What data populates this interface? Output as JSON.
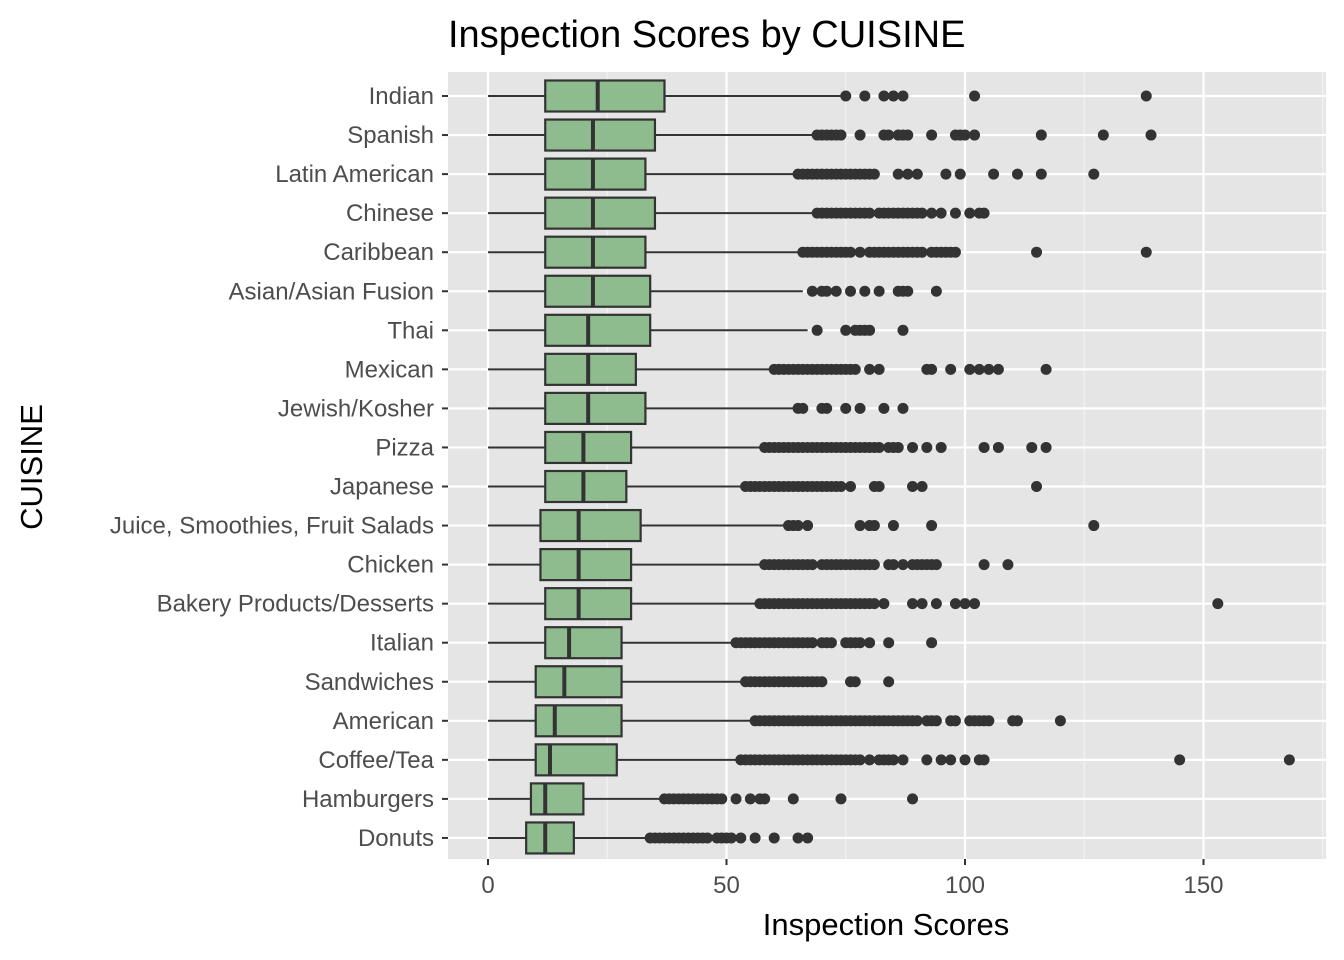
{
  "chart_data": {
    "type": "boxplot",
    "orientation": "horizontal",
    "title": "Inspection Scores by CUISINE",
    "xlabel": "Inspection Scores",
    "ylabel": "CUISINE",
    "xlim": [
      -8,
      176
    ],
    "x_ticks": [
      0,
      50,
      100,
      150
    ],
    "grid": true,
    "legend": "none",
    "box_fill": "#8FBC8F",
    "box_stroke": "#333333",
    "panel_background": "#E5E5E5",
    "categories": [
      "Indian",
      "Spanish",
      "Latin American",
      "Chinese",
      "Caribbean",
      "Asian/Asian Fusion",
      "Thai",
      "Mexican",
      "Jewish/Kosher",
      "Pizza",
      "Japanese",
      "Juice, Smoothies, Fruit Salads",
      "Chicken",
      "Bakery Products/Desserts",
      "Italian",
      "Sandwiches",
      "American",
      "Coffee/Tea",
      "Hamburgers",
      "Donuts"
    ],
    "boxes": [
      {
        "name": "Indian",
        "min": 0,
        "q1": 12,
        "median": 23,
        "q3": 37,
        "max": 74,
        "outliers": [
          75,
          79,
          83,
          85,
          87,
          102,
          138
        ]
      },
      {
        "name": "Spanish",
        "min": 0,
        "q1": 12,
        "median": 22,
        "q3": 35,
        "max": 68,
        "outliers": [
          69,
          70,
          71,
          72,
          73,
          74,
          78,
          83,
          84,
          86,
          87,
          88,
          93,
          98,
          99,
          100,
          102,
          116,
          129,
          139
        ]
      },
      {
        "name": "Latin American",
        "min": 0,
        "q1": 12,
        "median": 22,
        "q3": 33,
        "max": 64,
        "outliers": [
          65,
          66,
          67,
          68,
          69,
          70,
          71,
          72,
          73,
          74,
          75,
          76,
          77,
          78,
          79,
          80,
          81,
          86,
          88,
          90,
          96,
          99,
          106,
          111,
          116,
          127
        ]
      },
      {
        "name": "Chinese",
        "min": 0,
        "q1": 12,
        "median": 22,
        "q3": 35,
        "max": 68,
        "outliers": [
          69,
          70,
          71,
          72,
          73,
          74,
          75,
          76,
          77,
          78,
          79,
          80,
          82,
          83,
          84,
          85,
          86,
          87,
          88,
          89,
          90,
          91,
          93,
          95,
          98,
          101,
          103,
          104
        ]
      },
      {
        "name": "Caribbean",
        "min": 0,
        "q1": 12,
        "median": 22,
        "q3": 33,
        "max": 65,
        "outliers": [
          66,
          67,
          68,
          69,
          70,
          71,
          72,
          73,
          74,
          75,
          76,
          78,
          80,
          81,
          82,
          83,
          84,
          85,
          86,
          87,
          88,
          89,
          90,
          91,
          93,
          94,
          95,
          96,
          97,
          98,
          115,
          138
        ]
      },
      {
        "name": "Asian/Asian Fusion",
        "min": 0,
        "q1": 12,
        "median": 22,
        "q3": 34,
        "max": 66,
        "outliers": [
          68,
          70,
          71,
          73,
          76,
          79,
          82,
          86,
          87,
          88,
          94
        ]
      },
      {
        "name": "Thai",
        "min": 0,
        "q1": 12,
        "median": 21,
        "q3": 34,
        "max": 67,
        "outliers": [
          69,
          75,
          77,
          78,
          79,
          80,
          87
        ]
      },
      {
        "name": "Mexican",
        "min": 0,
        "q1": 12,
        "median": 21,
        "q3": 31,
        "max": 59,
        "outliers": [
          60,
          61,
          62,
          63,
          64,
          65,
          66,
          67,
          68,
          69,
          70,
          71,
          72,
          73,
          74,
          75,
          76,
          77,
          80,
          82,
          92,
          93,
          97,
          101,
          103,
          105,
          107,
          117
        ]
      },
      {
        "name": "Jewish/Kosher",
        "min": 0,
        "q1": 12,
        "median": 21,
        "q3": 33,
        "max": 64,
        "outliers": [
          65,
          66,
          70,
          71,
          75,
          78,
          83,
          87
        ]
      },
      {
        "name": "Pizza",
        "min": 0,
        "q1": 12,
        "median": 20,
        "q3": 30,
        "max": 57,
        "outliers": [
          58,
          59,
          60,
          61,
          62,
          63,
          64,
          65,
          66,
          67,
          68,
          69,
          70,
          71,
          72,
          73,
          74,
          75,
          76,
          77,
          78,
          79,
          80,
          81,
          82,
          84,
          85,
          86,
          89,
          92,
          95,
          104,
          107,
          114,
          117
        ]
      },
      {
        "name": "Japanese",
        "min": 0,
        "q1": 12,
        "median": 20,
        "q3": 29,
        "max": 53,
        "outliers": [
          54,
          55,
          56,
          57,
          58,
          59,
          60,
          61,
          62,
          63,
          64,
          65,
          66,
          67,
          68,
          69,
          70,
          71,
          72,
          73,
          74,
          76,
          81,
          82,
          89,
          91,
          115
        ]
      },
      {
        "name": "Juice, Smoothies, Fruit Salads",
        "min": 0,
        "q1": 11,
        "median": 19,
        "q3": 32,
        "max": 62,
        "outliers": [
          63,
          64,
          65,
          67,
          78,
          80,
          81,
          85,
          93,
          127
        ]
      },
      {
        "name": "Chicken",
        "min": 0,
        "q1": 11,
        "median": 19,
        "q3": 30,
        "max": 57,
        "outliers": [
          58,
          59,
          60,
          61,
          62,
          63,
          64,
          65,
          66,
          67,
          68,
          70,
          71,
          72,
          73,
          74,
          75,
          76,
          77,
          78,
          79,
          80,
          81,
          84,
          85,
          87,
          89,
          90,
          91,
          92,
          93,
          94,
          104,
          109
        ]
      },
      {
        "name": "Bakery Products/Desserts",
        "min": 0,
        "q1": 12,
        "median": 19,
        "q3": 30,
        "max": 56,
        "outliers": [
          57,
          58,
          59,
          60,
          61,
          62,
          63,
          64,
          65,
          66,
          67,
          68,
          69,
          70,
          71,
          72,
          73,
          74,
          75,
          76,
          77,
          78,
          79,
          80,
          81,
          83,
          89,
          91,
          94,
          98,
          100,
          102,
          153
        ]
      },
      {
        "name": "Italian",
        "min": 0,
        "q1": 12,
        "median": 17,
        "q3": 28,
        "max": 51,
        "outliers": [
          52,
          53,
          54,
          55,
          56,
          57,
          58,
          59,
          60,
          61,
          62,
          63,
          64,
          65,
          66,
          67,
          68,
          70,
          71,
          72,
          75,
          76,
          77,
          78,
          80,
          84,
          93
        ]
      },
      {
        "name": "Sandwiches",
        "min": 0,
        "q1": 10,
        "median": 16,
        "q3": 28,
        "max": 53,
        "outliers": [
          54,
          55,
          56,
          57,
          58,
          59,
          60,
          61,
          62,
          63,
          64,
          65,
          66,
          67,
          68,
          69,
          70,
          76,
          77,
          84
        ]
      },
      {
        "name": "American",
        "min": 0,
        "q1": 10,
        "median": 14,
        "q3": 28,
        "max": 55,
        "outliers": [
          56,
          57,
          58,
          59,
          60,
          61,
          62,
          63,
          64,
          65,
          66,
          67,
          68,
          69,
          70,
          71,
          72,
          73,
          74,
          75,
          76,
          77,
          78,
          79,
          80,
          81,
          82,
          83,
          84,
          85,
          86,
          87,
          88,
          89,
          90,
          92,
          93,
          94,
          97,
          98,
          101,
          102,
          103,
          104,
          105,
          110,
          111,
          120
        ]
      },
      {
        "name": "Coffee/Tea",
        "min": 0,
        "q1": 10,
        "median": 13,
        "q3": 27,
        "max": 52,
        "outliers": [
          53,
          54,
          55,
          56,
          57,
          58,
          59,
          60,
          61,
          62,
          63,
          64,
          65,
          66,
          67,
          68,
          69,
          70,
          71,
          72,
          73,
          74,
          75,
          76,
          77,
          78,
          80,
          82,
          83,
          84,
          85,
          87,
          92,
          95,
          97,
          100,
          103,
          104,
          145,
          168
        ]
      },
      {
        "name": "Hamburgers",
        "min": 0,
        "q1": 9,
        "median": 12,
        "q3": 20,
        "max": 36,
        "outliers": [
          37,
          38,
          39,
          40,
          41,
          42,
          43,
          44,
          45,
          46,
          47,
          48,
          49,
          52,
          55,
          57,
          58,
          64,
          74,
          89
        ]
      },
      {
        "name": "Donuts",
        "min": 0,
        "q1": 8,
        "median": 12,
        "q3": 18,
        "max": 33,
        "outliers": [
          34,
          35,
          36,
          37,
          38,
          39,
          40,
          41,
          42,
          43,
          44,
          45,
          46,
          48,
          49,
          50,
          51,
          53,
          56,
          60,
          65,
          67
        ]
      }
    ]
  }
}
